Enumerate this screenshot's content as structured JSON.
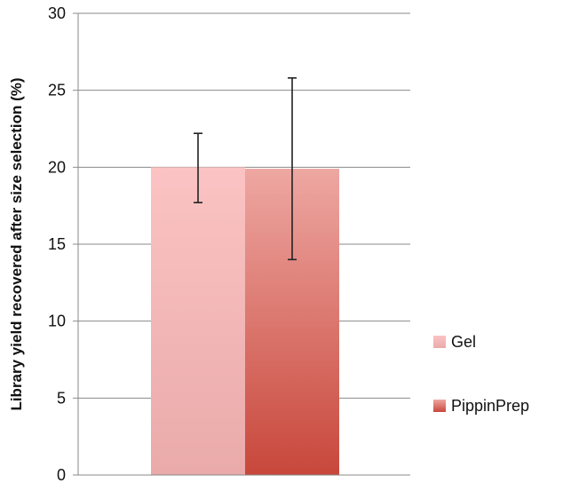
{
  "chart_data": {
    "type": "bar",
    "title": "",
    "xlabel": "",
    "ylabel": "Library yield recovered after size selection (%)",
    "ylim": [
      0,
      30
    ],
    "yticks": [
      0,
      5,
      10,
      15,
      20,
      25,
      30
    ],
    "grid": true,
    "legend_position": "right",
    "series": [
      {
        "name": "Gel",
        "value": 20.0,
        "error_low": 17.7,
        "error_high": 22.2,
        "color_top": "#fbc3c3",
        "color_bottom": "#eaaaaa"
      },
      {
        "name": "PippinPrep",
        "value": 19.9,
        "error_low": 14.0,
        "error_high": 25.8,
        "color_top": "#eea7a2",
        "color_bottom": "#c8473b"
      }
    ]
  }
}
